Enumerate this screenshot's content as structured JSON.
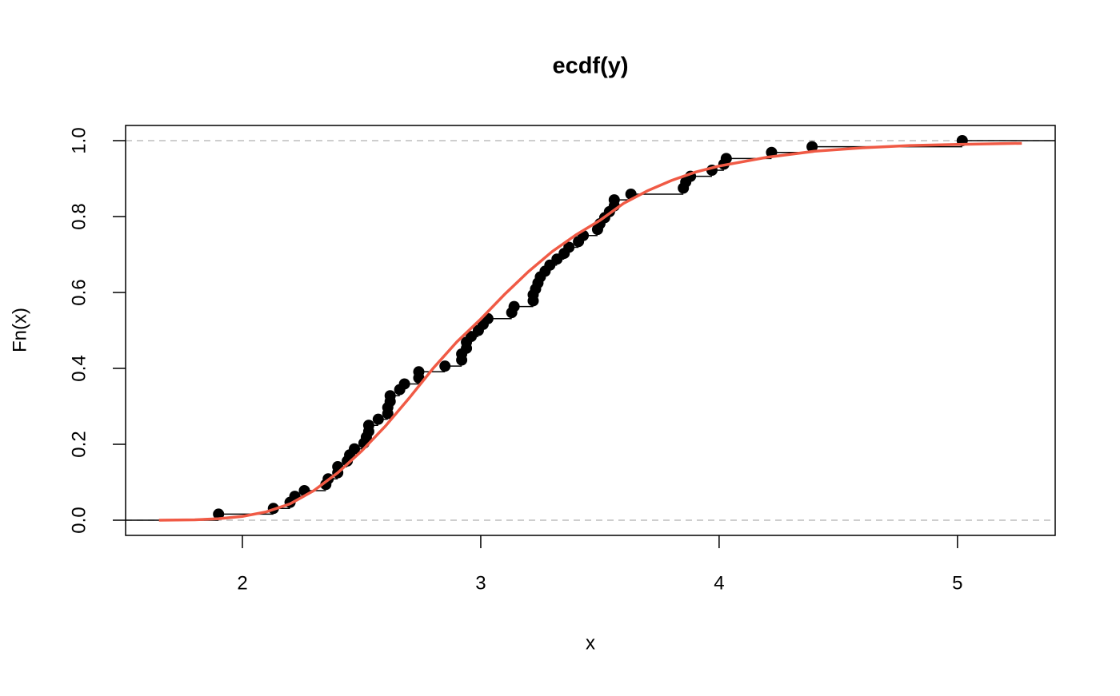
{
  "chart_data": {
    "type": "ecdf",
    "title": "ecdf(y)",
    "xlabel": "x",
    "ylabel": "Fn(x)",
    "xlim": [
      1.51,
      5.41
    ],
    "ylim": [
      -0.04,
      1.04
    ],
    "xticks": [
      2,
      3,
      4,
      5
    ],
    "yticks": [
      {
        "value": 0,
        "label": "0.0"
      },
      0.2,
      0.4,
      0.6,
      0.8,
      {
        "value": 1,
        "label": "1.0"
      }
    ],
    "hlines": [
      0,
      1
    ],
    "hline_color": "#bebebe",
    "series": [
      {
        "type": "step",
        "color": "#000000",
        "x": [
          1.9,
          2.13,
          2.2,
          2.22,
          2.26,
          2.35,
          2.36,
          2.4,
          2.4,
          2.44,
          2.45,
          2.47,
          2.51,
          2.52,
          2.53,
          2.53,
          2.57,
          2.61,
          2.61,
          2.62,
          2.62,
          2.66,
          2.68,
          2.74,
          2.74,
          2.85,
          2.92,
          2.92,
          2.94,
          2.94,
          2.96,
          2.99,
          3.01,
          3.03,
          3.13,
          3.14,
          3.22,
          3.22,
          3.23,
          3.24,
          3.25,
          3.27,
          3.29,
          3.32,
          3.35,
          3.37,
          3.41,
          3.43,
          3.49,
          3.5,
          3.52,
          3.54,
          3.56,
          3.56,
          3.63,
          3.85,
          3.86,
          3.88,
          3.97,
          4.02,
          4.03,
          4.22,
          4.39,
          5.02
        ],
        "values": [
          0.016,
          0.031,
          0.047,
          0.063,
          0.078,
          0.094,
          0.109,
          0.125,
          0.141,
          0.156,
          0.172,
          0.188,
          0.203,
          0.219,
          0.234,
          0.25,
          0.266,
          0.281,
          0.297,
          0.313,
          0.328,
          0.344,
          0.359,
          0.375,
          0.391,
          0.406,
          0.422,
          0.438,
          0.453,
          0.469,
          0.484,
          0.5,
          0.516,
          0.531,
          0.547,
          0.563,
          0.578,
          0.594,
          0.609,
          0.625,
          0.641,
          0.656,
          0.672,
          0.688,
          0.703,
          0.719,
          0.734,
          0.75,
          0.766,
          0.781,
          0.797,
          0.813,
          0.828,
          0.844,
          0.859,
          0.875,
          0.891,
          0.906,
          0.922,
          0.938,
          0.953,
          0.969,
          0.984,
          1.0
        ]
      },
      {
        "type": "line",
        "color": "#f05a45",
        "x": [
          1.65,
          1.8,
          1.9,
          2.0,
          2.1,
          2.2,
          2.3,
          2.4,
          2.5,
          2.6,
          2.7,
          2.8,
          2.9,
          3.0,
          3.1,
          3.2,
          3.3,
          3.4,
          3.5,
          3.6,
          3.7,
          3.8,
          3.9,
          4.0,
          4.2,
          4.4,
          4.6,
          4.8,
          5.0,
          5.27
        ],
        "values": [
          0.0,
          0.001,
          0.004,
          0.01,
          0.022,
          0.043,
          0.078,
          0.125,
          0.182,
          0.248,
          0.322,
          0.4,
          0.47,
          0.53,
          0.595,
          0.655,
          0.708,
          0.752,
          0.79,
          0.835,
          0.868,
          0.895,
          0.917,
          0.933,
          0.956,
          0.972,
          0.981,
          0.987,
          0.99,
          0.993
        ]
      }
    ]
  }
}
